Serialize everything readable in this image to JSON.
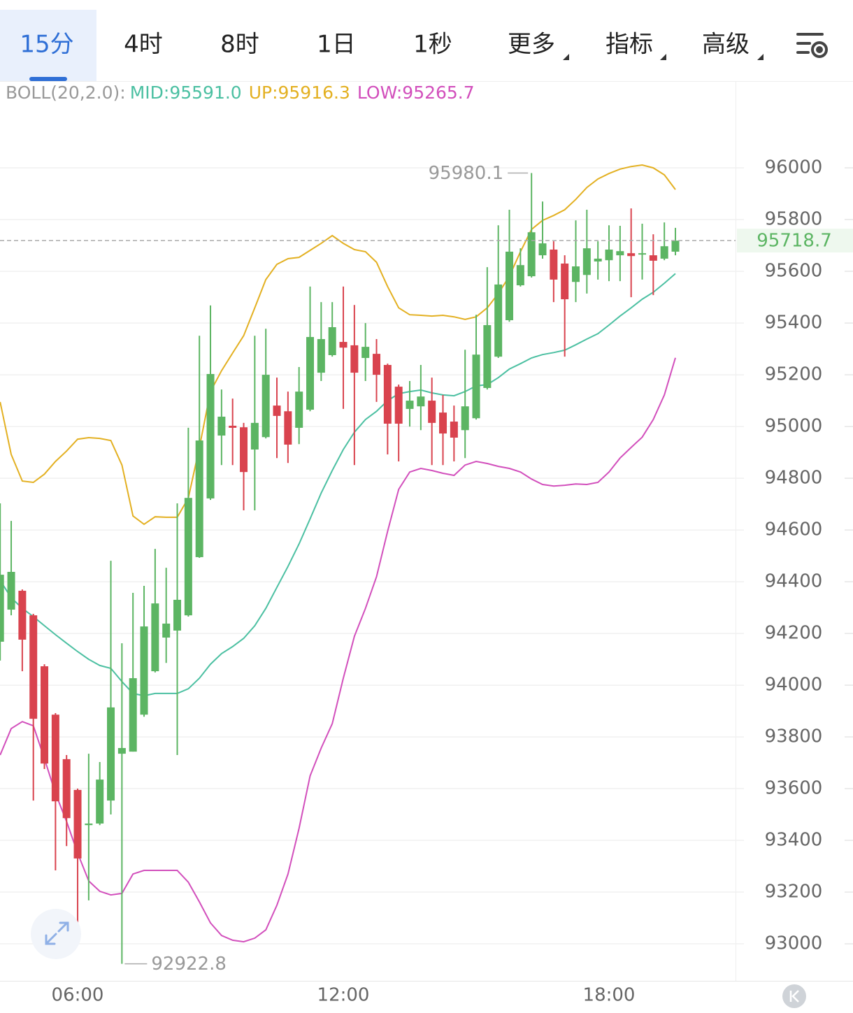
{
  "tabs": [
    "15分",
    "4时",
    "8时",
    "1日",
    "1秒",
    "更多",
    "指标",
    "高级"
  ],
  "chart_data": {
    "type": "candlestick",
    "indicator": "BOLL(20,2.0):",
    "categories": [
      null,
      null,
      null,
      null,
      null,
      null,
      null,
      "06:00",
      null,
      null,
      null,
      null,
      null,
      null,
      null,
      null,
      null,
      null,
      null,
      null,
      null,
      null,
      null,
      null,
      null,
      null,
      null,
      null,
      null,
      null,
      null,
      "12:00",
      null,
      null,
      null,
      null,
      null,
      null,
      null,
      null,
      null,
      null,
      null,
      null,
      null,
      null,
      null,
      null,
      null,
      null,
      null,
      null,
      null,
      null,
      null,
      "18:00",
      null,
      null,
      null,
      null,
      null,
      null
    ],
    "open": [
      94168,
      94292,
      94365,
      94270,
      94073,
      93886,
      93714,
      93595,
      93459,
      93465,
      93554,
      93735,
      93743,
      93886,
      94054,
      94184,
      94211,
      94270,
      94495,
      94722,
      94965,
      95003,
      94997,
      94911,
      94959,
      95081,
      95059,
      94995,
      95065,
      95208,
      95276,
      95327,
      95314,
      95265,
      95281,
      95238,
      95154,
      95068,
      95078,
      95100,
      95054,
      95019,
      94986,
      95032,
      95149,
      95270,
      95411,
      95546,
      95581,
      95662,
      95684,
      95630,
      95559,
      95586,
      95638,
      95643,
      95662,
      95670,
      95665,
      95662,
      95649,
      95676
    ],
    "high": [
      94703,
      94635,
      94370,
      94276,
      94081,
      93892,
      93730,
      93600,
      93735,
      93703,
      94481,
      94162,
      94357,
      94384,
      94527,
      94454,
      94703,
      94995,
      95351,
      95468,
      95143,
      95108,
      95014,
      95351,
      95378,
      95189,
      95135,
      95230,
      95541,
      95481,
      95481,
      95541,
      95470,
      95400,
      95338,
      95243,
      95162,
      95176,
      95238,
      95189,
      95122,
      95081,
      95297,
      95432,
      95616,
      95778,
      95838,
      95689,
      95980.1,
      95870,
      95716,
      95662,
      95797,
      95838,
      95716,
      95778,
      95776,
      95843,
      95784,
      95743,
      95789,
      95768
    ],
    "low": [
      94095,
      94270,
      94054,
      93554,
      93676,
      93284,
      93378,
      93000,
      93168,
      93459,
      93500,
      92922.8,
      93743,
      93878,
      94049,
      94086,
      93730,
      94265,
      94492,
      94716,
      94851,
      94851,
      94676,
      94676,
      94954,
      94878,
      94859,
      94932,
      95059,
      95176,
      95270,
      95068,
      94851,
      95176,
      95095,
      94892,
      94865,
      95000,
      94986,
      94851,
      94851,
      94865,
      94878,
      95027,
      95143,
      95265,
      95405,
      95541,
      95576,
      95649,
      95481,
      95270,
      95481,
      95514,
      95568,
      95562,
      95562,
      95500,
      95568,
      95508,
      95643,
      95662
    ],
    "close": [
      94427,
      94438,
      94176,
      93870,
      93697,
      93551,
      93486,
      93330,
      93465,
      93635,
      93914,
      93757,
      94027,
      94227,
      94316,
      94238,
      94330,
      94724,
      94946,
      95203,
      95038,
      94995,
      94824,
      95014,
      95200,
      95041,
      94930,
      95135,
      95346,
      95338,
      95384,
      95305,
      95208,
      95308,
      95200,
      95011,
      95011,
      95100,
      95116,
      95014,
      94973,
      94957,
      95078,
      95278,
      95392,
      95549,
      95676,
      95624,
      95751,
      95708,
      95568,
      95492,
      95619,
      95689,
      95649,
      95684,
      95678,
      95659,
      95670,
      95641,
      95697,
      95718.7
    ],
    "up_color": "#5cb563",
    "down_color": "#d9434e",
    "series": [
      {
        "name": "MID:95591.0",
        "color": "#4cc0a2",
        "values": [
          94405,
          94338,
          94297,
          94265,
          94230,
          94195,
          94162,
          94130,
          94100,
          94076,
          94065,
          94014,
          93968,
          93959,
          93968,
          93968,
          93968,
          93986,
          94027,
          94081,
          94122,
          94149,
          94181,
          94230,
          94297,
          94378,
          94459,
          94546,
          94643,
          94743,
          94830,
          94911,
          94978,
          95027,
          95059,
          95100,
          95127,
          95135,
          95141,
          95130,
          95122,
          95119,
          95135,
          95157,
          95162,
          95189,
          95222,
          95243,
          95265,
          95278,
          95286,
          95295,
          95316,
          95338,
          95359,
          95392,
          95427,
          95459,
          95492,
          95519,
          95554,
          95591.0
        ]
      },
      {
        "name": "UP:95916.3",
        "color": "#e3b021",
        "values": [
          95095,
          94892,
          94789,
          94784,
          94816,
          94865,
          94905,
          94951,
          94957,
          94954,
          94946,
          94851,
          94654,
          94622,
          94651,
          94649,
          94649,
          94724,
          94919,
          95135,
          95216,
          95284,
          95351,
          95459,
          95568,
          95627,
          95649,
          95654,
          95681,
          95708,
          95738,
          95708,
          95684,
          95676,
          95635,
          95541,
          95459,
          95432,
          95430,
          95427,
          95430,
          95424,
          95414,
          95424,
          95459,
          95514,
          95581,
          95676,
          95762,
          95797,
          95816,
          95838,
          95878,
          95924,
          95957,
          95978,
          95995,
          96005,
          96011,
          96000,
          95973,
          95916.3
        ]
      },
      {
        "name": "LOW:95265.7",
        "color": "#d24fbc",
        "values": [
          93730,
          93832,
          93859,
          93843,
          93716,
          93581,
          93473,
          93351,
          93243,
          93203,
          93189,
          93195,
          93270,
          93284,
          93284,
          93284,
          93284,
          93238,
          93162,
          93081,
          93032,
          93014,
          93008,
          93022,
          93054,
          93149,
          93270,
          93446,
          93649,
          93757,
          93851,
          94027,
          94189,
          94297,
          94419,
          94595,
          94757,
          94824,
          94838,
          94830,
          94819,
          94811,
          94851,
          94865,
          94857,
          94846,
          94838,
          94824,
          94797,
          94776,
          94770,
          94773,
          94778,
          94776,
          94784,
          94824,
          94878,
          94919,
          94959,
          95027,
          95122,
          95265.7
        ]
      }
    ],
    "indicator_color": "#999999",
    "ylim": [
      92865,
      96330
    ],
    "yticks": [
      93000,
      93200,
      93400,
      93600,
      93800,
      94000,
      94200,
      94400,
      94600,
      94800,
      95000,
      95200,
      95400,
      95600,
      95800,
      96000
    ],
    "grid": true
  }
}
